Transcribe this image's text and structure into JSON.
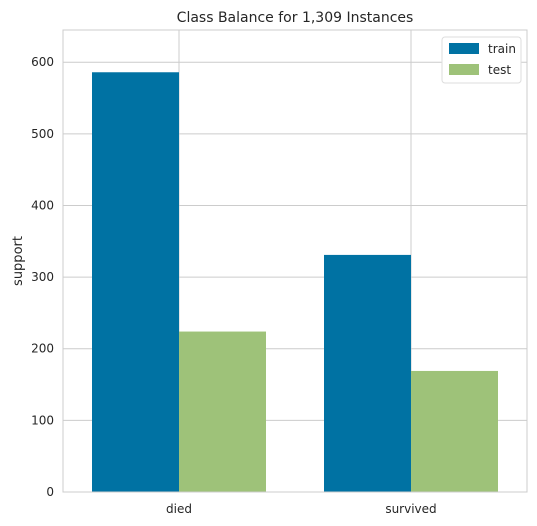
{
  "chart_data": {
    "type": "bar",
    "title": "Class Balance for 1,309 Instances",
    "xlabel": "",
    "ylabel": "support",
    "categories": [
      "died",
      "survived"
    ],
    "series": [
      {
        "name": "train",
        "values": [
          586,
          331
        ],
        "color": "#0072a3"
      },
      {
        "name": "test",
        "values": [
          224,
          169
        ],
        "color": "#9ec279"
      }
    ],
    "ylim": [
      0,
      645
    ],
    "yticks": [
      "0",
      "100",
      "200",
      "300",
      "400",
      "500",
      "600"
    ],
    "grid": true,
    "legend_position": "top-right"
  }
}
